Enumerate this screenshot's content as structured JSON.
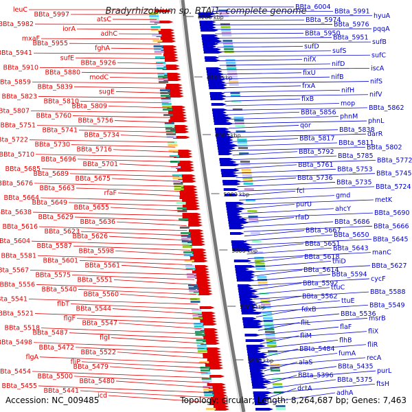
{
  "header": {
    "title": "Bradyrhizobium sp. BTAi1, complete genome"
  },
  "footer": {
    "accession": "Accession: NC_009485",
    "summary": "Topology: circular; Length: 8,264,687 bp; Genes: 7,463"
  },
  "colors": {
    "left_strand": "#e00000",
    "right_strand": "#0000cc",
    "backbone": "#888888",
    "tick_text": "#222222"
  },
  "scale_ticks": [
    "6200 kbp",
    "6100 kbp",
    "6000 kbp",
    "5900 kbp",
    "5800 kbp",
    "5700 kbp",
    "5600 kbp"
  ],
  "left_labels": [
    "leuC",
    "BBta_5997",
    "atsC",
    "BBta_5982",
    "iorA",
    "adhC",
    "mxaF",
    "BBta_5955",
    "fghA",
    "BBta_5941",
    "sufE",
    "BBta_5926",
    "BBta_5910",
    "BBta_5880",
    "modC",
    "BBta_5859",
    "BBta_5839",
    "sugE",
    "BBta_5823",
    "BBta_5810",
    "BBta_5809",
    "BBta_5807",
    "BBta_5760",
    "BBta_5756",
    "BBta_5751",
    "BBta_5741",
    "BBta_5734",
    "BBta_5722",
    "BBta_5730",
    "BBta_5716",
    "BBta_5710",
    "BBta_5696",
    "BBta_5701",
    "BBta_5685",
    "BBta_5689",
    "BBta_5675",
    "BBta_5676",
    "BBta_5663",
    "rfaF",
    "BBta_5664",
    "BBta_5649",
    "BBta_5655",
    "BBta_5638",
    "BBta_5629",
    "BBta_5636",
    "BBta_5616",
    "BBta_5623",
    "BBta_5626",
    "BBta_5604",
    "BBta_5587",
    "BBta_5598",
    "BBta_5581",
    "BBta_5601",
    "BBta_5561",
    "BBta_5567",
    "BBta_5575",
    "BBta_5551",
    "BBta_5556",
    "BBta_5540",
    "BBta_5560",
    "BBta_5541",
    "flbT",
    "BBta_5544",
    "BBta_5521",
    "flgF",
    "BBta_5547",
    "BBta_5518",
    "BBta_5487",
    "flgI",
    "BBta_5498",
    "BBta_5472",
    "BBta_5522",
    "flgA",
    "fliP",
    "BBta_5479",
    "BBta_5454",
    "BBta_5500",
    "BBta_5480",
    "BBta_5455",
    "BBta_5441",
    "icd"
  ],
  "right_labels": [
    "BBta_6004",
    "BBta_5991",
    "hyuA",
    "BBta_5974",
    "BBta_5976",
    "pqqA",
    "BBta_5950",
    "BBta_5951",
    "sufB",
    "sufD",
    "sufS",
    "sufC",
    "nifX",
    "nifD",
    "iscA",
    "fixU",
    "nifB",
    "nifS",
    "frxA",
    "nifH",
    "nifV",
    "fixB",
    "mop",
    "BBta_5862",
    "BBta_5856",
    "phnM",
    "phnL",
    "qor",
    "BBta_5838",
    "darR",
    "BBta_5817",
    "BBta_5811",
    "BBta_5802",
    "BBta_5792",
    "BBta_5785",
    "BBta_5772",
    "BBta_5761",
    "BBta_5753",
    "BBta_5745",
    "BBta_5736",
    "BBta_5735",
    "BBta_5724",
    "fcl",
    "gmd",
    "metK",
    "purU",
    "ahcY",
    "BBta_5690",
    "rfaD",
    "BBta_5686",
    "BBta_5666",
    "BBta_5667",
    "BBta_5650",
    "BBta_5645",
    "BBta_5651",
    "BBta_5643",
    "manC",
    "BBta_5618",
    "thiD",
    "BBta_5627",
    "BBta_5614",
    "BBta_5594",
    "cycF",
    "BBta_5592",
    "ttuC",
    "BBta_5588",
    "BBta_5562",
    "ttuE",
    "BBta_5549",
    "fdxB",
    "BBta_5536",
    "msrB",
    "fliL",
    "flaF",
    "fliX",
    "fliM",
    "flhB",
    "fliR",
    "BBta_5484",
    "fumA",
    "recA",
    "alaS",
    "BBta_5435",
    "purL",
    "BBta_5396",
    "BBta_5375",
    "ftsH",
    "dctA",
    "adhA"
  ]
}
